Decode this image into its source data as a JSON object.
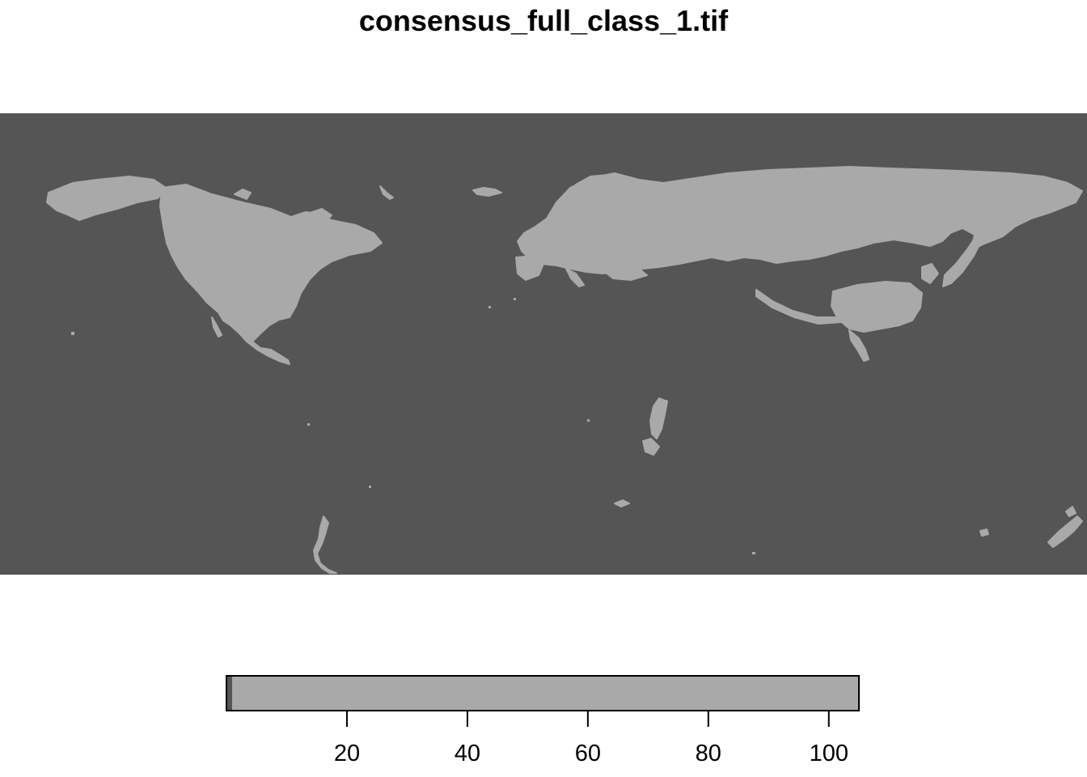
{
  "title": "consensus_full_class_1.tif",
  "colors": {
    "background": "#555555",
    "land": "#a9a9a9",
    "legend_low": "#555555",
    "legend_high": "#a9a9a9"
  },
  "legend": {
    "min": 0,
    "max": 105,
    "break_value": 1,
    "ticks": [
      20,
      40,
      60,
      80,
      100
    ]
  }
}
